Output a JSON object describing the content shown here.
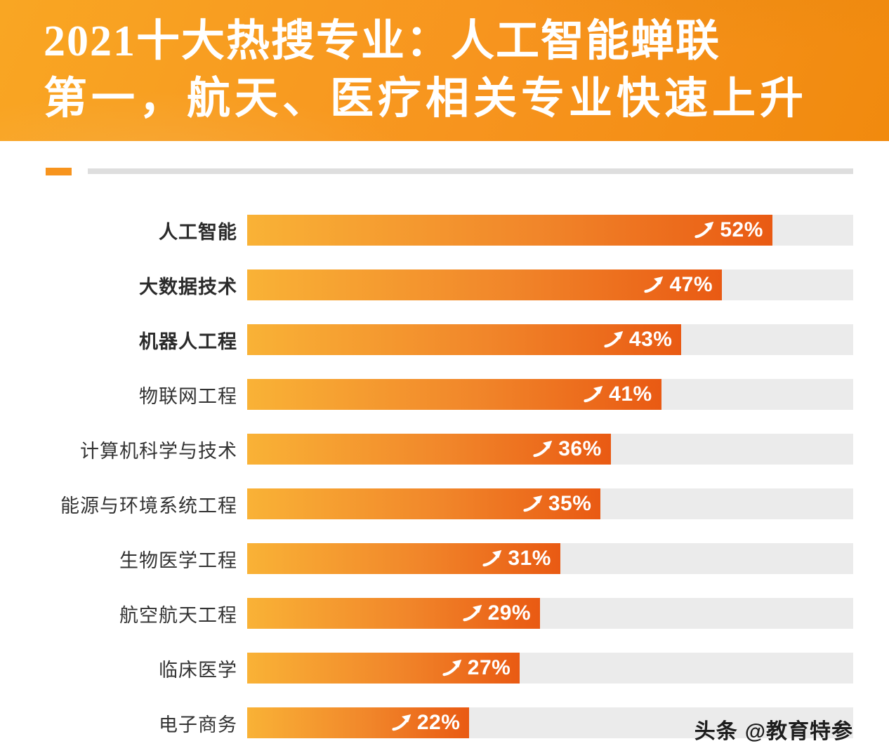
{
  "header": {
    "title_line1": "2021十大热搜专业：人工智能蝉联",
    "title_line2": "第一，航天、医疗相关专业快速上升"
  },
  "chart_data": {
    "type": "bar",
    "orientation": "horizontal",
    "title": "2021十大热搜专业：人工智能蝉联第一，航天、医疗相关专业快速上升",
    "categories": [
      "人工智能",
      "大数据技术",
      "机器人工程",
      "物联网工程",
      "计算机科学与技术",
      "能源与环境系统工程",
      "生物医学工程",
      "航空航天工程",
      "临床医学",
      "电子商务"
    ],
    "values": [
      52,
      47,
      43,
      41,
      36,
      35,
      31,
      29,
      27,
      22
    ],
    "unit": "%",
    "xlim": [
      0,
      60
    ],
    "bold_categories": [
      "人工智能",
      "大数据技术",
      "机器人工程"
    ],
    "bar_gradient": [
      "#f9b236",
      "#e95a13"
    ],
    "track_color": "#ebebeb",
    "legend": "none",
    "grid": false
  },
  "watermark": {
    "brand": "头条",
    "handle": "@教育特参"
  },
  "colors": {
    "header_orange": "#f7941e",
    "bar_start": "#f9b236",
    "bar_end": "#e95a13",
    "track_gray": "#ebebeb",
    "label_text": "#333333",
    "title_text": "#ffffff"
  }
}
